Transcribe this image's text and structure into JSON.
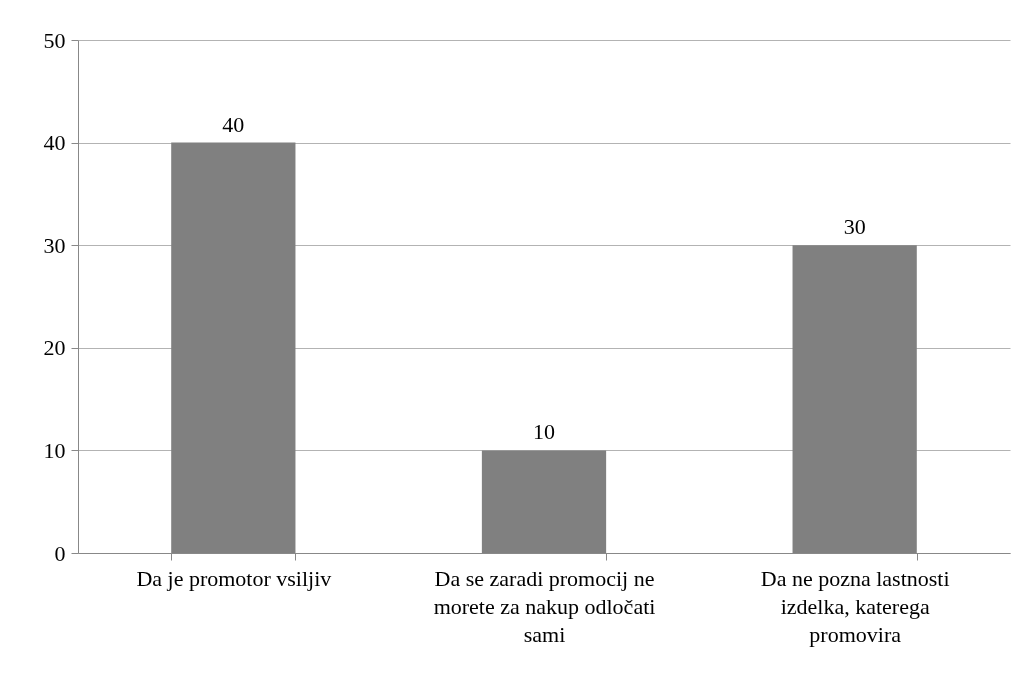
{
  "chart_data": {
    "type": "bar",
    "categories": [
      "Da je promotor vsiljiv",
      "Da se zaradi promocij ne morete za nakup odločati sami",
      "Da ne pozna lastnosti izdelka, katerega promovira"
    ],
    "values": [
      40,
      10,
      30
    ],
    "color": "#808080",
    "ylim": [
      0,
      50
    ],
    "yticks": [
      0,
      10,
      20,
      30,
      40,
      50
    ],
    "grid": "y",
    "data_labels": true
  }
}
